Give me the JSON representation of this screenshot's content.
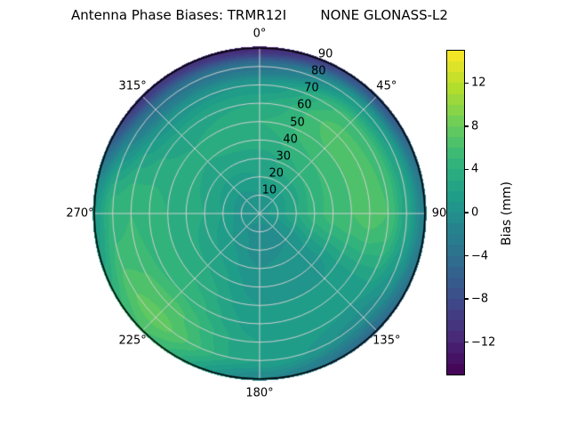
{
  "window": {
    "background": "#ffffff"
  },
  "chart_data": {
    "type": "heatmap",
    "projection": "polar",
    "title": "Antenna Phase Biases: TRMR12I        NONE GLONASS-L2",
    "colorbar_label": "Bias (mm)",
    "colormap": "viridis",
    "colormap_stops": [
      "#440154",
      "#482878",
      "#3e4989",
      "#31688e",
      "#26828e",
      "#1f9e89",
      "#35b779",
      "#6ece58",
      "#b5de2b",
      "#fde725"
    ],
    "vmin": -15,
    "vmax": 15,
    "level_step_mm": 1,
    "colorbar_ticks": [
      12,
      8,
      4,
      0,
      -4,
      -8,
      -12
    ],
    "colorbar_tick_labels": [
      "12",
      "8",
      "4",
      "0",
      "−4",
      "−8",
      "−12"
    ],
    "angular_ticks_deg": [
      0,
      45,
      90,
      135,
      180,
      225,
      270,
      315
    ],
    "angular_tick_labels": [
      "0°",
      "45°",
      "90",
      "135°",
      "180°",
      "225°",
      "270°",
      "315°"
    ],
    "radial_ticks": [
      10,
      20,
      30,
      40,
      50,
      60,
      70,
      80,
      90
    ],
    "radial_tick_labels": [
      "10",
      "20",
      "30",
      "40",
      "50",
      "60",
      "70",
      "80",
      "90"
    ],
    "radial_label_azimuth_deg": 22.5,
    "radius_max": 90,
    "azimuth_grid_deg": [
      0,
      45,
      90,
      135,
      180,
      225,
      270,
      315
    ],
    "radius_grid": [
      0,
      10,
      20,
      30,
      40,
      50,
      60,
      70,
      80,
      90
    ],
    "bias_mm_grid": [
      [
        0.5,
        1.0,
        2.0,
        2.5,
        3.5,
        4.0,
        3.0,
        1.0,
        -3.5,
        -11.5
      ],
      [
        0.5,
        1.0,
        2.5,
        4.0,
        5.0,
        6.0,
        6.5,
        5.5,
        1.5,
        -7.0
      ],
      [
        0.5,
        1.5,
        3.0,
        4.5,
        5.5,
        6.0,
        6.5,
        6.0,
        2.5,
        -2.0
      ],
      [
        0.5,
        0.0,
        0.0,
        0.5,
        0.5,
        1.0,
        1.0,
        1.0,
        -0.5,
        -4.5
      ],
      [
        0.5,
        -0.5,
        -0.5,
        0.0,
        0.5,
        1.0,
        1.5,
        2.0,
        2.0,
        -1.0
      ],
      [
        0.5,
        0.0,
        1.0,
        2.0,
        3.0,
        4.0,
        5.0,
        6.5,
        7.5,
        6.0
      ],
      [
        0.5,
        0.5,
        2.0,
        3.0,
        3.5,
        4.0,
        4.5,
        5.0,
        4.5,
        1.0
      ],
      [
        0.5,
        0.5,
        1.5,
        2.5,
        3.0,
        3.0,
        2.5,
        0.5,
        -3.5,
        -10.0
      ]
    ],
    "grid_color": "#d0d0d0",
    "outline_color": "#000000"
  }
}
